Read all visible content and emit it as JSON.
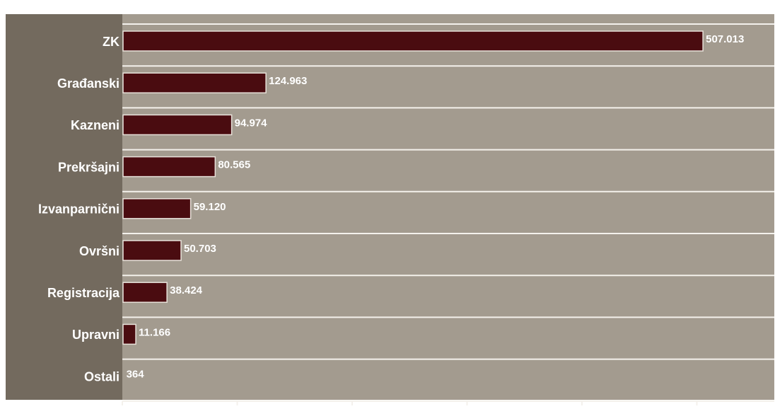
{
  "chart_data": {
    "type": "bar",
    "orientation": "horizontal",
    "title": "",
    "xlabel": "",
    "ylabel": "",
    "categories": [
      "ZK",
      "Građanski",
      "Kazneni",
      "Prekršajni",
      "Izvanparnični",
      "Ovršni",
      "Registracija",
      "Upravni",
      "Ostali"
    ],
    "values": [
      507013,
      124963,
      94974,
      80565,
      59120,
      50703,
      38424,
      11166,
      364
    ],
    "value_labels": [
      "507.013",
      "124.963",
      "94.974",
      "80.565",
      "59.120",
      "50.703",
      "38.424",
      "11.166",
      "364"
    ],
    "xlim": [
      0,
      570000
    ],
    "grid": true,
    "legend": "none",
    "colors": {
      "page": "#ffffff",
      "label_panel": "#736a5e",
      "plot_bg": "#a39b8f",
      "bar": "#4a0c10",
      "bar_outline": "#e8e2da",
      "grid_line": "#f4f1ec",
      "text": "#ffffff"
    }
  }
}
